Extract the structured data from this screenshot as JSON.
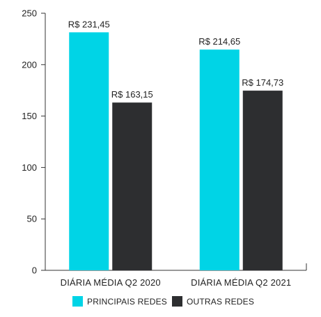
{
  "chart_data": {
    "type": "bar",
    "categories": [
      "DIÁRIA MÉDIA Q2 2020",
      "DIÁRIA MÉDIA Q2 2021"
    ],
    "series": [
      {
        "name": "PRINCIPAIS REDES",
        "values": [
          231.45,
          214.65
        ],
        "labels": [
          "R$ 231,45",
          "R$ 214,65"
        ],
        "color": "#00d4e6"
      },
      {
        "name": "OUTRAS REDES",
        "values": [
          163.15,
          174.73
        ],
        "labels": [
          "R$ 163,15",
          "R$ 174,73"
        ],
        "color": "#2d2e30"
      }
    ],
    "ylim": [
      0,
      250
    ],
    "yticks": [
      0,
      50,
      100,
      150,
      200,
      250
    ],
    "grid": false,
    "legend_position": "bottom-center"
  }
}
